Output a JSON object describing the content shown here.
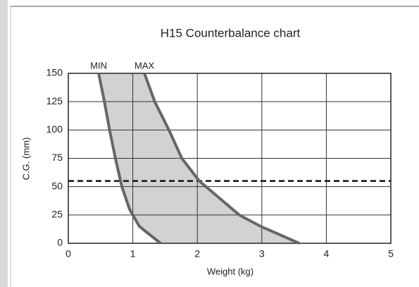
{
  "chart_data": {
    "type": "line",
    "title": "H15 Counterbalance chart",
    "xlabel": "Weight (kg)",
    "ylabel": "C.G. (mm)",
    "series": [
      {
        "name": "MIN",
        "color": "#666666",
        "x": [
          0.47,
          0.56,
          0.64,
          0.73,
          0.83,
          0.95,
          1.1,
          1.43
        ],
        "values": [
          150,
          125,
          100,
          75,
          50,
          30,
          15,
          0
        ]
      },
      {
        "name": "MAX",
        "color": "#666666",
        "x": [
          1.18,
          1.34,
          1.56,
          1.76,
          2.03,
          2.65,
          2.98,
          3.58
        ],
        "values": [
          150,
          125,
          100,
          75,
          55,
          25,
          15,
          0
        ]
      }
    ],
    "fill_between": "#d2d2d4",
    "reference_line": 55,
    "xlim": [
      0,
      5
    ],
    "xticks": [
      0,
      1,
      2,
      3,
      4,
      5
    ],
    "ylim": [
      0,
      150
    ],
    "yticks": [
      0,
      25,
      50,
      75,
      100,
      125,
      150
    ],
    "grid": true
  }
}
